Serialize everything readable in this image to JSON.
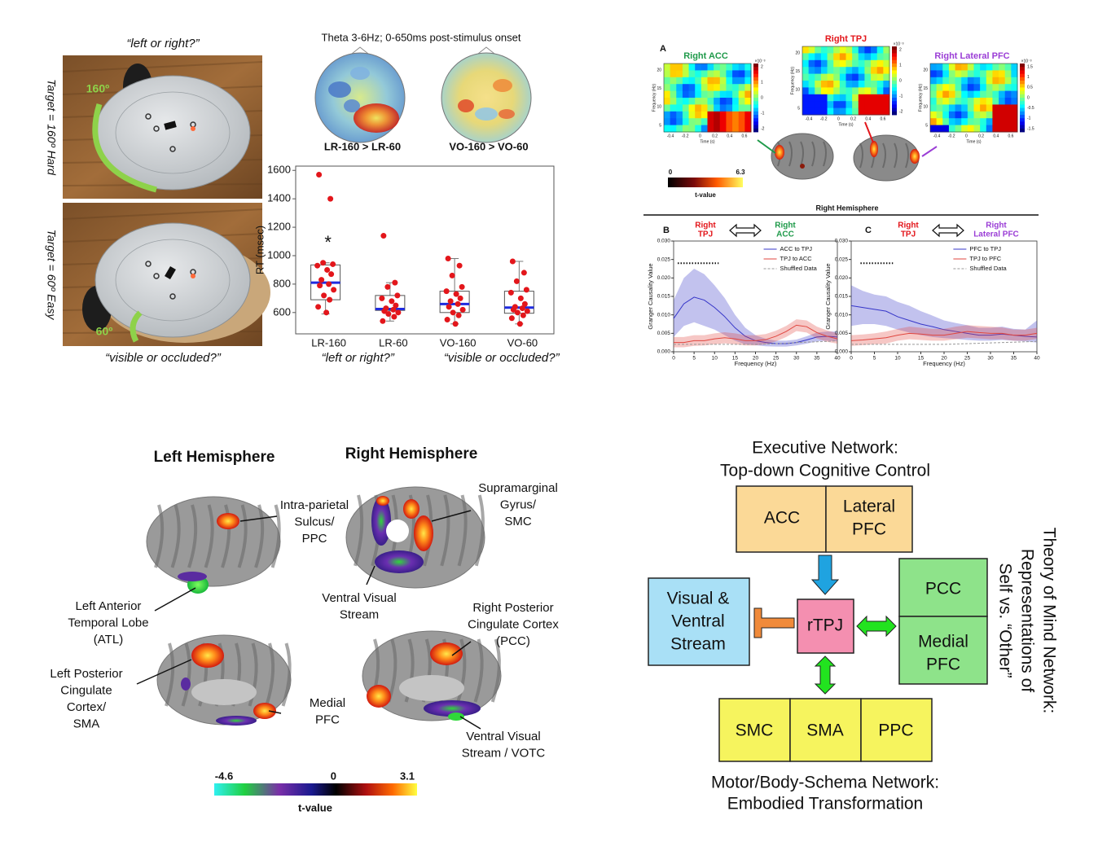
{
  "photos": [
    {
      "question": "“left or right?”",
      "target": "Target = 160º Hard",
      "angle": "160º"
    },
    {
      "question": "“visible or occluded?”",
      "target": "Target = 60º Easy",
      "angle": "60º"
    }
  ],
  "eeg": {
    "title": "Theta 3-6Hz; 0-650ms post-stimulus onset",
    "topomap_labels": [
      "LR-160 > LR-60",
      "VO-160 > VO-60"
    ]
  },
  "chart_data": [
    {
      "type": "box",
      "ylabel": "RT (msec)",
      "categories": [
        "LR-160",
        "LR-60",
        "VO-160",
        "VO-60"
      ],
      "group_labels": [
        "“left or right?”",
        "“visible or occluded?”"
      ],
      "ylim": [
        450,
        1630
      ],
      "yticks": [
        600,
        800,
        1000,
        1200,
        1400,
        1600
      ],
      "median_color": "#1f2be0",
      "point_color": "#e3161b",
      "boxes": [
        {
          "annotation": "*",
          "whisker_low": 590,
          "q1": 690,
          "median": 810,
          "q3": 935,
          "whisker_high": 950,
          "points": [
            1570,
            1400,
            950,
            940,
            930,
            900,
            870,
            830,
            800,
            790,
            760,
            720,
            690,
            640,
            600
          ]
        },
        {
          "whisker_low": 540,
          "q1": 615,
          "median": 625,
          "q3": 720,
          "whisker_high": 810,
          "points": [
            1140,
            810,
            780,
            720,
            700,
            680,
            650,
            630,
            620,
            610,
            600,
            590,
            570,
            540
          ]
        },
        {
          "whisker_low": 520,
          "q1": 600,
          "median": 660,
          "q3": 750,
          "whisker_high": 980,
          "points": [
            980,
            930,
            860,
            780,
            750,
            730,
            700,
            680,
            660,
            640,
            620,
            600,
            580,
            550,
            520
          ]
        },
        {
          "whisker_low": 520,
          "q1": 595,
          "median": 635,
          "q3": 750,
          "whisker_high": 960,
          "points": [
            960,
            880,
            820,
            760,
            740,
            700,
            660,
            640,
            630,
            620,
            610,
            600,
            580,
            560,
            520
          ]
        }
      ]
    },
    {
      "type": "line",
      "panel": "B",
      "source": [
        "Right",
        "TPJ"
      ],
      "source_color": "#e3161b",
      "target": [
        "Right",
        "ACC"
      ],
      "target_color": "#1f9a4a",
      "ylabel": "Granger Causality Value",
      "xlabel": "Frequency (Hz)",
      "x": [
        0,
        2.5,
        5,
        7.5,
        10,
        12.5,
        15,
        17.5,
        20,
        22.5,
        25,
        27.5,
        30,
        32.5,
        35,
        37.5,
        40
      ],
      "xlim": [
        0,
        40
      ],
      "xticks": [
        0,
        5,
        10,
        15,
        20,
        25,
        30,
        35,
        40
      ],
      "ylim": [
        0,
        0.03
      ],
      "yticks": [
        {
          "value": 0,
          "label": "0.000"
        },
        {
          "value": 0.005,
          "label": "0.005"
        },
        {
          "value": 0.01,
          "label": "0.010"
        },
        {
          "value": 0.015,
          "label": "0.015"
        },
        {
          "value": 0.02,
          "label": "0.020"
        },
        {
          "value": 0.025,
          "label": "0.025"
        },
        {
          "value": 0.03,
          "label": "0.030"
        }
      ],
      "significance": {
        "x": [
          1,
          11
        ],
        "y": 0.024
      },
      "series": [
        {
          "name": "ACC to TPJ",
          "color": "#3535c8",
          "values": [
            0.009,
            0.013,
            0.0148,
            0.014,
            0.012,
            0.0095,
            0.0065,
            0.0042,
            0.003,
            0.0025,
            0.0022,
            0.0022,
            0.0025,
            0.0032,
            0.004,
            0.0042,
            0.004
          ],
          "upper": [
            0.014,
            0.02,
            0.0225,
            0.021,
            0.018,
            0.0145,
            0.01,
            0.0065,
            0.0045,
            0.0035,
            0.003,
            0.003,
            0.0033,
            0.0042,
            0.0052,
            0.0055,
            0.0055
          ],
          "lower": [
            0.004,
            0.007,
            0.008,
            0.007,
            0.006,
            0.0045,
            0.003,
            0.002,
            0.0018,
            0.0015,
            0.0014,
            0.0014,
            0.0017,
            0.0022,
            0.0028,
            0.003,
            0.0028
          ]
        },
        {
          "name": "TPJ to ACC",
          "color": "#e0463f",
          "values": [
            0.0025,
            0.0025,
            0.003,
            0.003,
            0.0035,
            0.0038,
            0.0035,
            0.003,
            0.003,
            0.0033,
            0.0042,
            0.0055,
            0.0072,
            0.0068,
            0.0052,
            0.0042,
            0.0035
          ],
          "upper": [
            0.004,
            0.004,
            0.0045,
            0.0045,
            0.005,
            0.0053,
            0.005,
            0.0045,
            0.0045,
            0.0048,
            0.0057,
            0.007,
            0.0088,
            0.0085,
            0.0068,
            0.0058,
            0.005
          ],
          "lower": [
            0.0012,
            0.0012,
            0.0016,
            0.0017,
            0.002,
            0.0023,
            0.002,
            0.0017,
            0.0017,
            0.002,
            0.0028,
            0.004,
            0.0056,
            0.0052,
            0.0036,
            0.0027,
            0.0022
          ]
        },
        {
          "name": "Shuffled Data",
          "color": "#999999",
          "dash": true,
          "values": [
            0.002,
            0.002,
            0.002,
            0.002,
            0.002,
            0.002,
            0.002,
            0.002,
            0.002,
            0.0021,
            0.0022,
            0.0023,
            0.0025,
            0.0026,
            0.0027,
            0.0028,
            0.003
          ]
        }
      ]
    },
    {
      "type": "line",
      "panel": "C",
      "source": [
        "Right",
        "TPJ"
      ],
      "source_color": "#e3161b",
      "target": [
        "Right",
        "Lateral PFC"
      ],
      "target_color": "#9b3ed6",
      "ylabel": "Granger Causality Value",
      "xlabel": "Frequency (Hz)",
      "x": [
        0,
        2.5,
        5,
        7.5,
        10,
        12.5,
        15,
        17.5,
        20,
        22.5,
        25,
        27.5,
        30,
        32.5,
        35,
        37.5,
        40
      ],
      "xlim": [
        0,
        40
      ],
      "xticks": [
        0,
        5,
        10,
        15,
        20,
        25,
        30,
        35,
        40
      ],
      "ylim": [
        0,
        0.03
      ],
      "yticks": [
        {
          "value": 0,
          "label": "0.000"
        },
        {
          "value": 0.005,
          "label": "0.005"
        },
        {
          "value": 0.01,
          "label": "0.010"
        },
        {
          "value": 0.015,
          "label": "0.015"
        },
        {
          "value": 0.02,
          "label": "0.020"
        },
        {
          "value": 0.025,
          "label": "0.025"
        },
        {
          "value": 0.03,
          "label": "0.030"
        }
      ],
      "significance": {
        "x": [
          2,
          9
        ],
        "y": 0.024
      },
      "series": [
        {
          "name": "PFC to TPJ",
          "color": "#3535c8",
          "values": [
            0.0125,
            0.012,
            0.0115,
            0.011,
            0.0095,
            0.0085,
            0.0075,
            0.0068,
            0.006,
            0.0055,
            0.005,
            0.0045,
            0.0045,
            0.0048,
            0.0045,
            0.0042,
            0.004
          ],
          "upper": [
            0.018,
            0.0165,
            0.0155,
            0.015,
            0.0135,
            0.0125,
            0.011,
            0.0098,
            0.0085,
            0.0078,
            0.0072,
            0.0065,
            0.0065,
            0.0068,
            0.0062,
            0.006,
            0.0085
          ],
          "lower": [
            0.007,
            0.0075,
            0.0075,
            0.007,
            0.006,
            0.0052,
            0.0045,
            0.004,
            0.0037,
            0.0035,
            0.0032,
            0.003,
            0.003,
            0.0032,
            0.003,
            0.0028,
            0.0025
          ]
        },
        {
          "name": "TPJ to PFC",
          "color": "#e0463f",
          "values": [
            0.003,
            0.0032,
            0.0035,
            0.0038,
            0.0045,
            0.005,
            0.0048,
            0.0045,
            0.0045,
            0.005,
            0.0055,
            0.0052,
            0.005,
            0.005,
            0.0045,
            0.0045,
            0.005
          ],
          "upper": [
            0.0045,
            0.0047,
            0.005,
            0.0055,
            0.0062,
            0.0068,
            0.0065,
            0.0062,
            0.0062,
            0.0068,
            0.0072,
            0.007,
            0.0068,
            0.0066,
            0.006,
            0.006,
            0.0065
          ],
          "lower": [
            0.0016,
            0.0018,
            0.002,
            0.0022,
            0.003,
            0.0034,
            0.0032,
            0.003,
            0.003,
            0.0034,
            0.0038,
            0.0036,
            0.0034,
            0.0034,
            0.003,
            0.003,
            0.0035
          ]
        },
        {
          "name": "Shuffled Data",
          "color": "#999999",
          "dash": true,
          "values": [
            0.002,
            0.002,
            0.002,
            0.002,
            0.002,
            0.002,
            0.002,
            0.002,
            0.002,
            0.0021,
            0.0022,
            0.0023,
            0.0024,
            0.0025,
            0.0026,
            0.0027,
            0.0028
          ]
        }
      ]
    }
  ],
  "heatmaps": {
    "panel": "A",
    "ylabel": "Frequency (Hz)",
    "xlabel": "Time (s)",
    "xticks": [
      -0.4,
      -0.2,
      0,
      0.2,
      0.4,
      0.6
    ],
    "yticks": [
      20,
      15,
      10,
      5
    ],
    "cbar_scale": "×10⁻³",
    "maps": [
      {
        "title": "Right ACC",
        "color": "#1f9a4a",
        "cbar_ticks": [
          2,
          1,
          0,
          -1,
          -2
        ]
      },
      {
        "title": "Right TPJ",
        "color": "#e3161b",
        "cbar_ticks": [
          2,
          1,
          0,
          -1,
          -2
        ]
      },
      {
        "title": "Right Lateral PFC",
        "color": "#9b3ed6",
        "cbar_ticks": [
          1.5,
          1,
          0.5,
          0,
          -0.5,
          -1,
          -1.5
        ]
      }
    ],
    "tvalue_ticks": [
      0,
      6.3
    ],
    "tvalue_label": "t-value",
    "hemisphere": "Right Hemisphere"
  },
  "brain_maps": {
    "headers": [
      "Left Hemisphere",
      "Right Hemisphere"
    ],
    "labels": [
      [
        "Intra-parietal",
        "Sulcus/",
        "PPC"
      ],
      [
        "Supramarginal",
        "Gyrus/",
        "SMC"
      ],
      [
        "Left Anterior",
        "Temporal Lobe",
        "(ATL)"
      ],
      [
        "Ventral Visual",
        "Stream"
      ],
      [
        "Right Posterior",
        "Cingulate Cortex",
        "(PCC)"
      ],
      [
        "Left Posterior",
        "Cingulate",
        "Cortex/",
        "SMA"
      ],
      [
        "Medial",
        "PFC"
      ],
      [
        "Ventral Visual",
        "Stream / VOTC"
      ]
    ],
    "colorbar_ticks": [
      -4.6,
      0,
      3.1
    ],
    "colorbar_label": "t-value"
  },
  "network": {
    "executive_title": [
      "Executive Network:",
      "Top-down Cognitive Control"
    ],
    "motor_title": [
      "Motor/Body-Schema Network:",
      "Embodied Transformation"
    ],
    "tom_title": [
      "Theory of Mind Network:",
      "Representations of",
      "Self vs. “Other”"
    ],
    "acc": [
      "ACC"
    ],
    "lateral_pfc": [
      "Lateral",
      "PFC"
    ],
    "rtpj": [
      "rTPJ"
    ],
    "visual": [
      "Visual &",
      "Ventral",
      "Stream"
    ],
    "pcc": [
      "PCC"
    ],
    "medial_pfc": [
      "Medial",
      "PFC"
    ],
    "smc": [
      "SMC"
    ],
    "sma": [
      "SMA"
    ],
    "ppc": [
      "PPC"
    ]
  }
}
